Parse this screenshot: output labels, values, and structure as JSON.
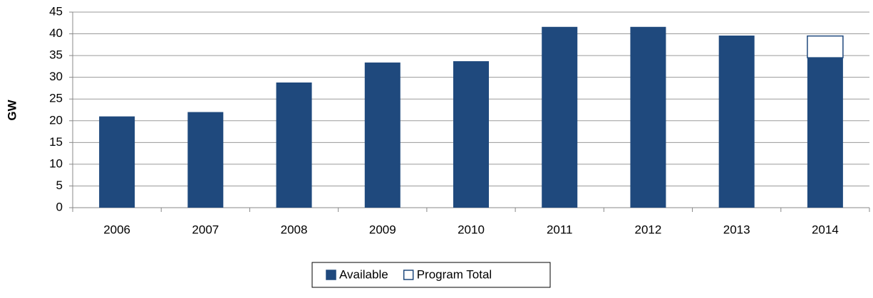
{
  "chart_data": {
    "type": "stacked_bar",
    "y_label": "GW",
    "categories": [
      "2006",
      "2007",
      "2008",
      "2009",
      "2010",
      "2011",
      "2012",
      "2013",
      "2014"
    ],
    "series": [
      {
        "name": "Available",
        "color": "#1f497d",
        "values": [
          21,
          22,
          28.8,
          33.4,
          33.7,
          41.6,
          41.6,
          39.6,
          34.5
        ]
      },
      {
        "name": "Program Total",
        "color": "#1f497d",
        "fill": "#ffffff",
        "values": [
          null,
          null,
          null,
          null,
          null,
          null,
          null,
          null,
          5
        ]
      }
    ],
    "ylim": [
      0,
      45
    ],
    "yticks": [
      0,
      5,
      10,
      15,
      20,
      25,
      30,
      35,
      40,
      45
    ],
    "grid": true
  }
}
